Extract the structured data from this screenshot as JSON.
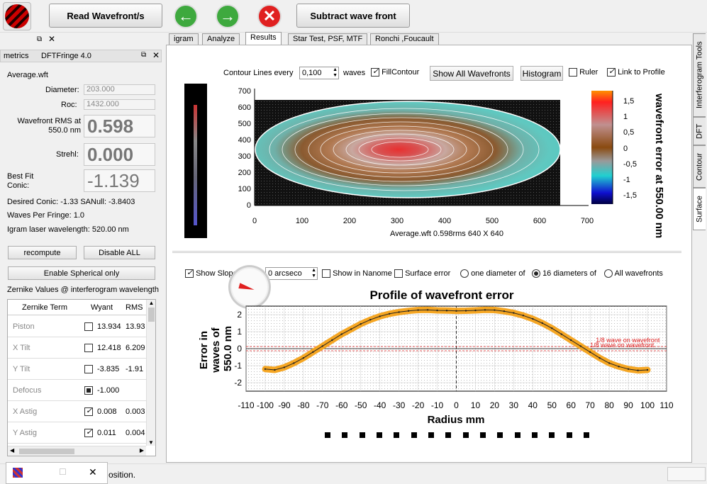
{
  "toolbar": {
    "read_wavefront": "Read Wavefront/s",
    "subtract": "Subtract wave front"
  },
  "left": {
    "dock_title_left": "metrics",
    "dock_title_app": "DFTFringe 4.0",
    "filename": "Average.wft",
    "diameter_label": "Diameter:",
    "diameter_value": "203.000",
    "roc_label": "Roc:",
    "roc_value": "1432.000",
    "rms_label": "Wavefront RMS at 550.0 nm",
    "rms_value": "0.598",
    "strehl_label": "Strehl:",
    "strehl_value": "0.000",
    "conic_label": "Best Fit Conic:",
    "conic_value": "-1.139",
    "desired_conic": "Desired Conic:  -1.33 SANull: -3.8403",
    "waves_per_fringe": "Waves Per Fringe: 1.0",
    "laser": "Igram laser wavelength: 520.00 nm",
    "recompute": "recompute",
    "disable_all": "Disable ALL",
    "enable_spherical": "Enable Spherical only",
    "zernike_title": "Zernike Values @ interferogram wavelength",
    "zt_headers": [
      "Zernike Term",
      "Wyant",
      "RMS"
    ],
    "zt_rows": [
      {
        "term": "Piston",
        "val": "13.934",
        "rms": "13.93"
      },
      {
        "term": "X Tilt",
        "val": "12.418",
        "rms": "6.209"
      },
      {
        "term": "Y Tilt",
        "val": "-3.835",
        "rms": "-1.91"
      },
      {
        "term": "Defocus",
        "val": "-1.000",
        "rms": ""
      },
      {
        "term": "X Astig",
        "val": "0.008",
        "rms": "0.003"
      },
      {
        "term": "Y Astig",
        "val": "0.011",
        "rms": "0.004"
      }
    ]
  },
  "tabs": [
    "igram",
    "Analyze",
    "Results",
    "Star Test, PSF, MTF",
    "Ronchi ,Foucault"
  ],
  "vtabs": [
    "Interferogram Tools",
    "DFT",
    "Contour",
    "Surface"
  ],
  "contour": {
    "lines_label": "Contour Lines every",
    "lines_value": "0,100",
    "waves_label": "waves",
    "fill_label": "FillContour",
    "show_all": "Show All Wavefronts",
    "histogram": "Histogram",
    "ruler": "Ruler",
    "link": "Link to Profile",
    "y_ticks": [
      "700",
      "600",
      "500",
      "400",
      "300",
      "200",
      "100",
      "0"
    ],
    "x_ticks": [
      "0",
      "100",
      "200",
      "300",
      "400",
      "500",
      "600",
      "700"
    ],
    "caption": "Average.wft  0.598rms 640 X 640",
    "cb_ticks": [
      "1,5",
      "1",
      "0,5",
      "0",
      "-0,5",
      "-1",
      "-1,5"
    ],
    "cb_title": "wavefront error at 550.00 nm"
  },
  "profile": {
    "show_slope": "Show Slope",
    "slope_value": "0 arcseco",
    "show_nano": "Show in Nanome",
    "surface_error": "Surface error",
    "one_diam": "one diameter of",
    "sixteen_diam": "16 diameters of",
    "all_wf": "All wavefronts",
    "title": "Profile of wavefront error",
    "ylabel": "Error in waves of 550.0 nm",
    "xlabel": "Radius mm",
    "y_ticks": [
      "2",
      "1",
      "0",
      "-1",
      "-2"
    ],
    "x_ticks": [
      "-110",
      "-100",
      "-90",
      "-80",
      "-70",
      "-60",
      "-50",
      "-40",
      "-30",
      "-20",
      "-10",
      "0",
      "10",
      "20",
      "30",
      "40",
      "50",
      "60",
      "70",
      "80",
      "90",
      "100",
      "110"
    ],
    "annotation": "1/8 wave on wavefront"
  },
  "status": {
    "text": "osition."
  },
  "chart_data": {
    "type": "line",
    "title": "Profile of wavefront error",
    "xlabel": "Radius mm",
    "ylabel": "Error in waves of 550.0 nm",
    "xlim": [
      -110,
      110
    ],
    "ylim": [
      -2.5,
      2.5
    ],
    "x": [
      -100,
      -95,
      -90,
      -85,
      -80,
      -75,
      -70,
      -65,
      -60,
      -55,
      -50,
      -45,
      -40,
      -35,
      -30,
      -25,
      -20,
      -15,
      -10,
      -5,
      0,
      5,
      10,
      15,
      20,
      25,
      30,
      35,
      40,
      45,
      50,
      55,
      60,
      65,
      70,
      75,
      80,
      85,
      90,
      95,
      100
    ],
    "series": [
      {
        "values": [
          -1.2,
          -1.25,
          -1.1,
          -0.85,
          -0.55,
          -0.2,
          0.15,
          0.5,
          0.85,
          1.15,
          1.45,
          1.7,
          1.9,
          2.05,
          2.15,
          2.22,
          2.27,
          2.28,
          2.25,
          2.24,
          2.22,
          2.23,
          2.25,
          2.28,
          2.27,
          2.2,
          2.1,
          1.95,
          1.75,
          1.5,
          1.2,
          0.85,
          0.5,
          0.15,
          -0.2,
          -0.55,
          -0.85,
          -1.05,
          -1.2,
          -1.28,
          -1.25
        ]
      }
    ],
    "annotations": [
      "1/8 wave on wavefront"
    ]
  }
}
